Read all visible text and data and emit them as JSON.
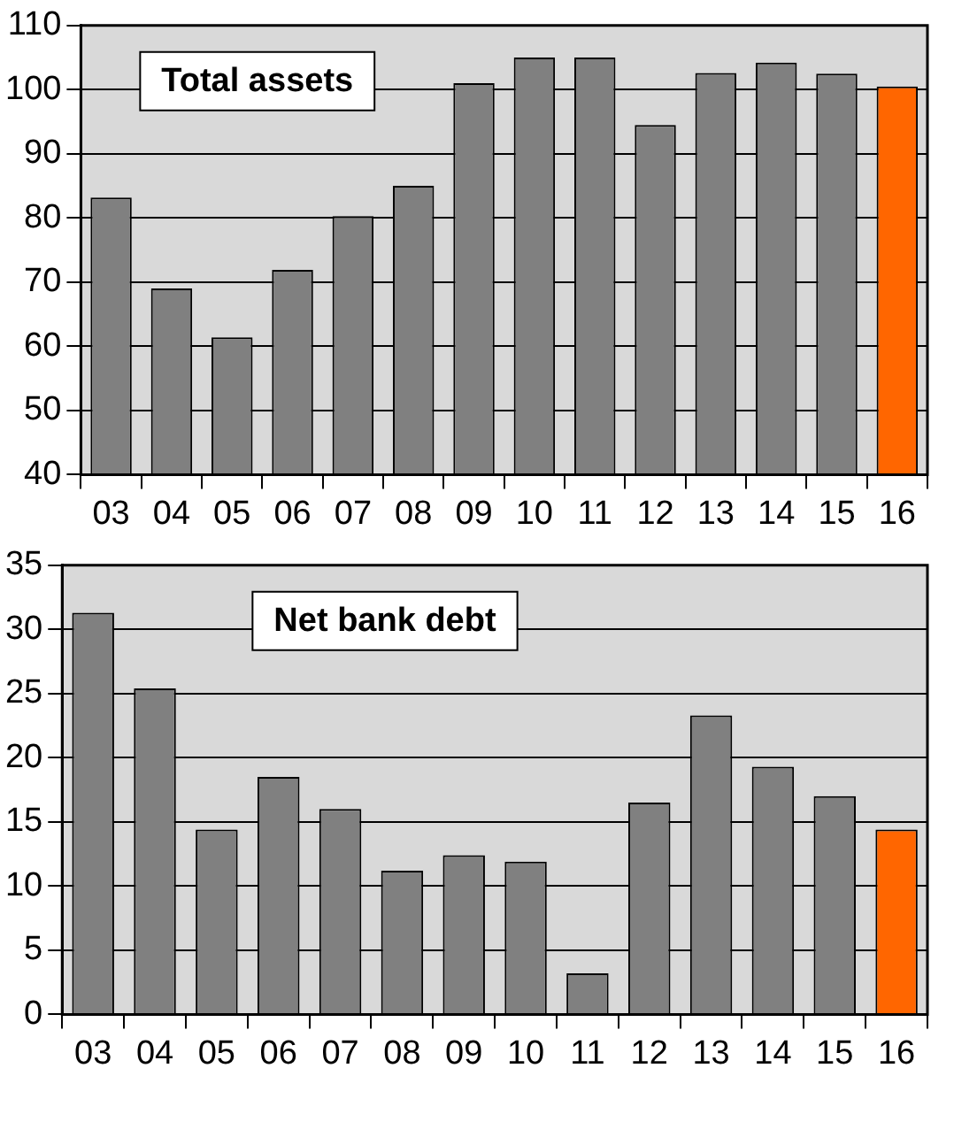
{
  "chart_data": [
    {
      "type": "bar",
      "title": "Total assets",
      "categories": [
        "03",
        "04",
        "05",
        "06",
        "07",
        "08",
        "09",
        "10",
        "11",
        "12",
        "13",
        "14",
        "15",
        "16"
      ],
      "values": [
        83.2,
        69,
        61.4,
        71.9,
        80.3,
        85,
        101,
        105,
        105,
        94.5,
        102.6,
        104.2,
        102.5,
        100.5
      ],
      "colors": [
        "#808080",
        "#808080",
        "#808080",
        "#808080",
        "#808080",
        "#808080",
        "#808080",
        "#808080",
        "#808080",
        "#808080",
        "#808080",
        "#808080",
        "#808080",
        "#ff6600"
      ],
      "ylim": [
        40,
        110
      ],
      "yticks": [
        40,
        50,
        60,
        70,
        80,
        90,
        100,
        110
      ],
      "grid": "y",
      "legend": false
    },
    {
      "type": "bar",
      "title": "Net bank debt",
      "categories": [
        "03",
        "04",
        "05",
        "06",
        "07",
        "08",
        "09",
        "10",
        "11",
        "12",
        "13",
        "14",
        "15",
        "16"
      ],
      "values": [
        31.3,
        25.4,
        14.4,
        18.5,
        16,
        11.2,
        12.4,
        11.9,
        3.2,
        16.5,
        23.3,
        19.3,
        17,
        14.4
      ],
      "colors": [
        "#808080",
        "#808080",
        "#808080",
        "#808080",
        "#808080",
        "#808080",
        "#808080",
        "#808080",
        "#808080",
        "#808080",
        "#808080",
        "#808080",
        "#808080",
        "#ff6600"
      ],
      "ylim": [
        0,
        35
      ],
      "yticks": [
        0,
        5,
        10,
        15,
        20,
        25,
        30,
        35
      ],
      "grid": "y",
      "legend": false
    }
  ]
}
